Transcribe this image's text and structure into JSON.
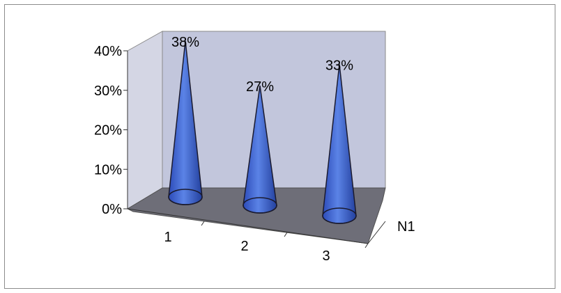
{
  "chart_data": {
    "type": "bar",
    "shape": "cone",
    "three_d": true,
    "categories": [
      "1",
      "2",
      "3"
    ],
    "series": [
      {
        "name": "N1",
        "values": [
          0.38,
          0.27,
          0.33
        ],
        "labels": [
          "38%",
          "27%",
          "33%"
        ]
      }
    ],
    "ylim": [
      0,
      0.4
    ],
    "yticks": [
      "0%",
      "10%",
      "20%",
      "30%",
      "40%"
    ],
    "grid": false,
    "legend": "none",
    "colors": {
      "cone": "#4a6fd6",
      "cone_dark": "#1e3a96",
      "back_wall": "#c2c6dc",
      "side_wall": "#d4d6e4",
      "floor": "#6e6e78"
    }
  }
}
